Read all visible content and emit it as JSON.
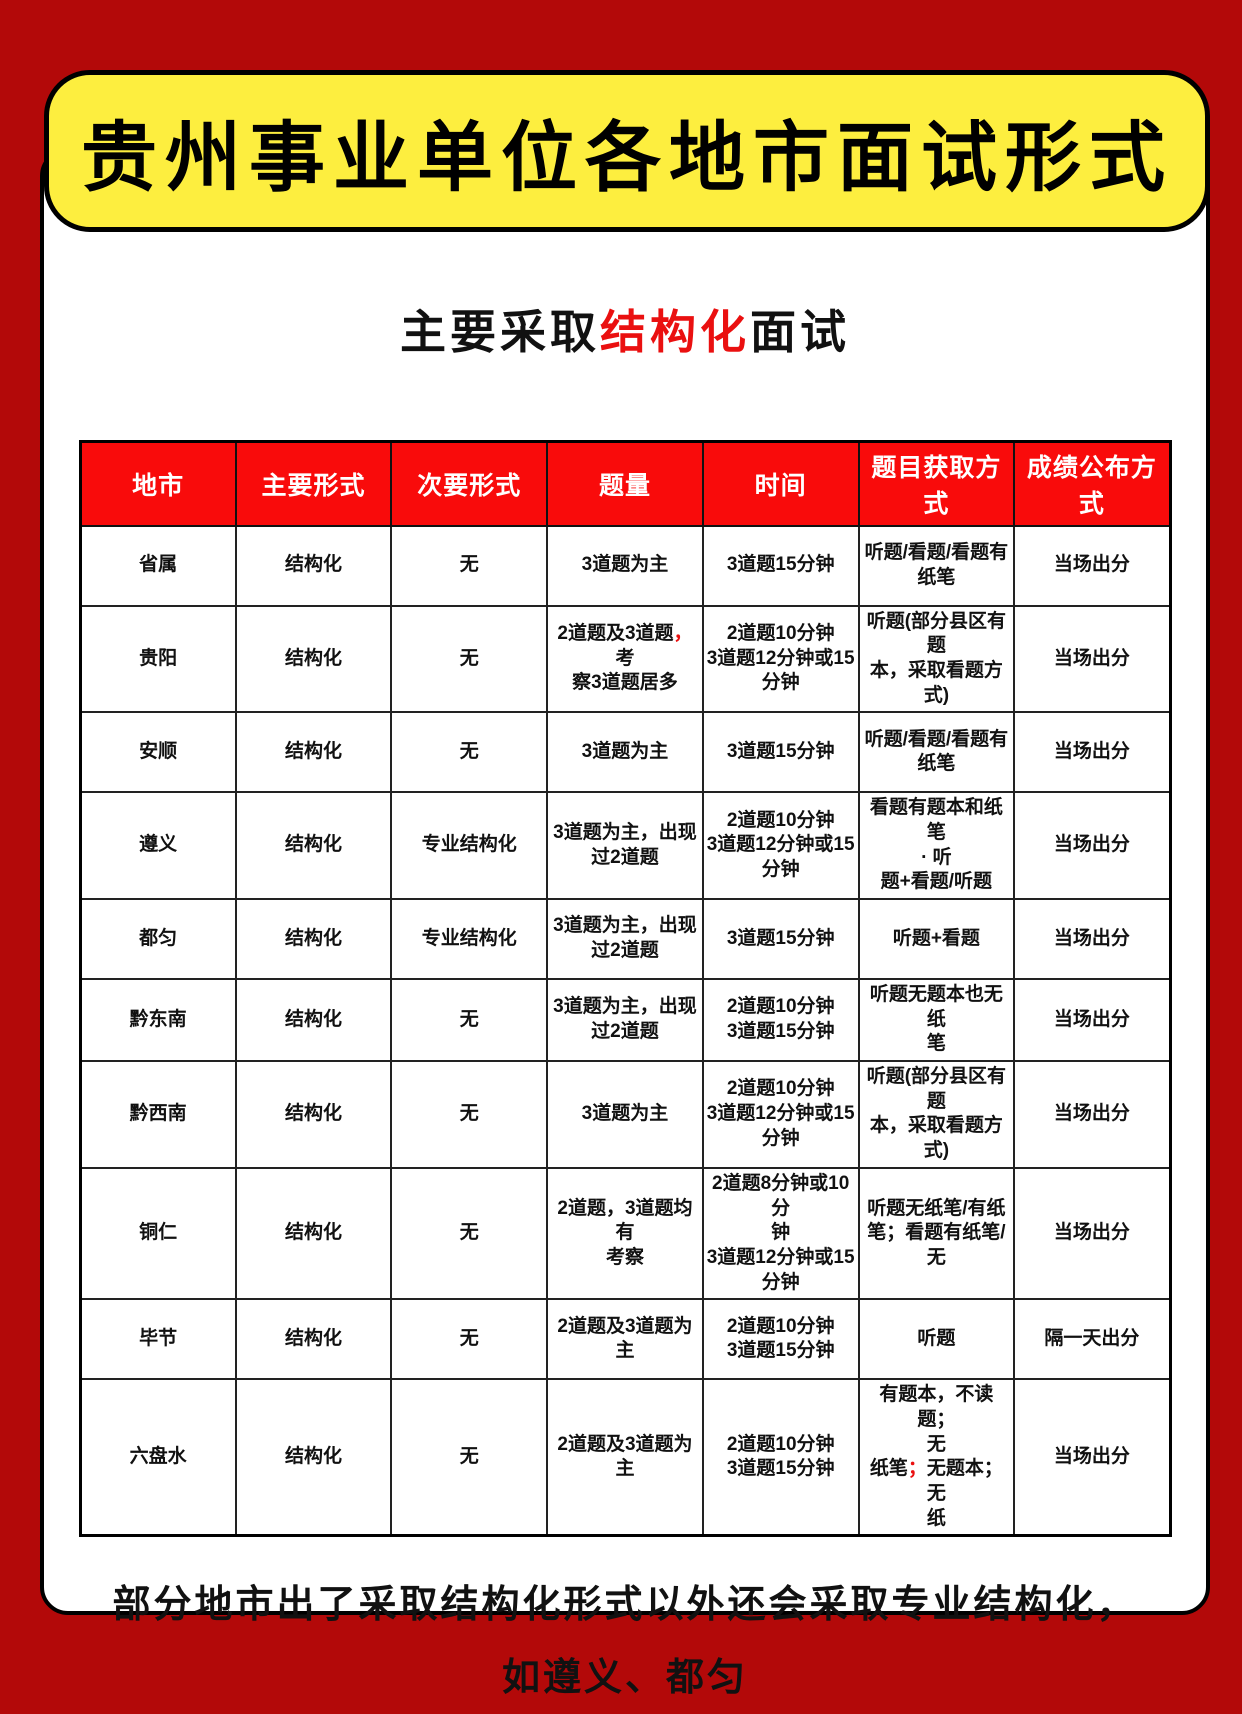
{
  "page": {
    "title": "贵州事业单位各地市面试形式",
    "subtitle": {
      "prefix": "主要采取",
      "highlight": "结构化",
      "suffix": "面试"
    },
    "footer_note": "部分地市出了采取结构化形式以外还会采取专业结构化，\n如遵义、都匀"
  },
  "colors": {
    "frame_red": "#b30909",
    "header_red": "#f90b0b",
    "banner_yellow": "#fdee3f",
    "accent_red": "#ea1010",
    "text_black": "#111111"
  },
  "table": {
    "columns": [
      "地市",
      "主要形式",
      "次要形式",
      "题量",
      "时间",
      "题目获取方式",
      "成绩公布方式"
    ],
    "rows": [
      {
        "cells": [
          "省属",
          "结构化",
          "无",
          "3道题为主",
          "3道题15分钟",
          "听题/看题/看题有\n纸笔",
          "当场出分"
        ]
      },
      {
        "cells": [
          "贵阳",
          "结构化",
          "无",
          [
            {
              "text": "2道题及3道题"
            },
            {
              "text": "，",
              "accent": true
            },
            {
              "text": "考\n察3道题居多"
            }
          ],
          "2道题10分钟\n3道题12分钟或15\n分钟",
          "听题(部分县区有\n题\n本，采取看题方\n式)",
          "当场出分"
        ]
      },
      {
        "cells": [
          "安顺",
          "结构化",
          "无",
          "3道题为主",
          "3道题15分钟",
          "听题/看题/看题有\n纸笔",
          "当场出分"
        ]
      },
      {
        "cells": [
          "遵义",
          "结构化",
          "专业结构化",
          "3道题为主，出现\n过2道题",
          "2道题10分钟\n3道题12分钟或15\n分钟",
          "看题有题本和纸笔\n· 听\n题+看题/听题",
          "当场出分"
        ]
      },
      {
        "cells": [
          "都匀",
          "结构化",
          "专业结构化",
          "3道题为主，出现\n过2道题",
          "3道题15分钟",
          "听题+看题",
          "当场出分"
        ]
      },
      {
        "cells": [
          "黔东南",
          "结构化",
          "无",
          "3道题为主，出现\n过2道题",
          "2道题10分钟\n3道题15分钟",
          "听题无题本也无纸\n笔",
          "当场出分"
        ]
      },
      {
        "cells": [
          "黔西南",
          "结构化",
          "无",
          "3道题为主",
          "2道题10分钟\n3道题12分钟或15\n分钟",
          "听题(部分县区有\n题\n本，采取看题方\n式)",
          "当场出分"
        ]
      },
      {
        "cells": [
          "铜仁",
          "结构化",
          "无",
          "2道题，3道题均有\n考察",
          "2道题8分钟或10分\n钟\n3道题12分钟或15\n分钟",
          "听题无纸笔/有纸\n笔；看题有纸笔/\n无",
          "当场出分"
        ]
      },
      {
        "cells": [
          "毕节",
          "结构化",
          "无",
          "2道题及3道题为主",
          "2道题10分钟\n3道题15分钟",
          "听题",
          "隔一天出分"
        ]
      },
      {
        "cells": [
          "六盘水",
          "结构化",
          "无",
          "2道题及3道题为主",
          "2道题10分钟\n3道题15分钟",
          [
            {
              "text": "有题本，不读题；\n无\n纸笔"
            },
            {
              "text": "；",
              "accent": true
            },
            {
              "text": "无题本；无\n纸"
            }
          ],
          "当场出分"
        ]
      }
    ]
  }
}
